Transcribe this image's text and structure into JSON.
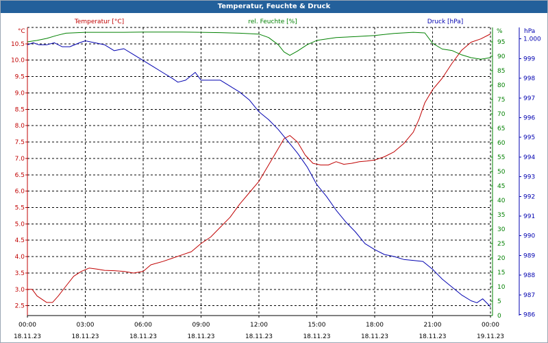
{
  "window": {
    "title": "Temperatur, Feuchte & Druck"
  },
  "colors": {
    "temperature": "#c00000",
    "humidity": "#008000",
    "pressure": "#0000b0",
    "titlebar": "#23609b"
  },
  "chart_data": {
    "type": "line",
    "x_ticks": [
      {
        "hours": 0,
        "time": "00:00",
        "date": "18.11.23"
      },
      {
        "hours": 3,
        "time": "03:00",
        "date": "18.11.23"
      },
      {
        "hours": 6,
        "time": "06:00",
        "date": "18.11.23"
      },
      {
        "hours": 9,
        "time": "09:00",
        "date": "18.11.23"
      },
      {
        "hours": 12,
        "time": "12:00",
        "date": "18.11.23"
      },
      {
        "hours": 15,
        "time": "15:00",
        "date": "18.11.23"
      },
      {
        "hours": 18,
        "time": "18:00",
        "date": "18.11.23"
      },
      {
        "hours": 21,
        "time": "21:00",
        "date": "18.11.23"
      },
      {
        "hours": 24,
        "time": "00:00",
        "date": "19.11.23"
      }
    ],
    "xlim": [
      0,
      24
    ],
    "grid": true,
    "axes": {
      "temperature": {
        "title": "Temperatur [°C]",
        "unit": "°C",
        "min": 2.2,
        "max": 11.0,
        "ticks": [
          {
            "v": 2.5,
            "label": "2.5"
          },
          {
            "v": 3.0,
            "label": "3.0"
          },
          {
            "v": 3.5,
            "label": "3.5"
          },
          {
            "v": 4.0,
            "label": "4.0"
          },
          {
            "v": 4.5,
            "label": "4.5"
          },
          {
            "v": 5.0,
            "label": "5.0"
          },
          {
            "v": 5.5,
            "label": "5.5"
          },
          {
            "v": 6.0,
            "label": "6.0"
          },
          {
            "v": 6.5,
            "label": "6.5"
          },
          {
            "v": 7.0,
            "label": "7.0"
          },
          {
            "v": 7.5,
            "label": "7.5"
          },
          {
            "v": 8.0,
            "label": "8.0"
          },
          {
            "v": 8.5,
            "label": "8.5"
          },
          {
            "v": 9.0,
            "label": "9.0"
          },
          {
            "v": 9.5,
            "label": "9.5"
          },
          {
            "v": 10.0,
            "label": "10.0"
          },
          {
            "v": 10.5,
            "label": "10.5"
          }
        ]
      },
      "humidity": {
        "title": "rel. Feuchte [%]",
        "unit": "%",
        "min": 0,
        "max": 100,
        "ticks": [
          {
            "v": 0,
            "label": "0"
          },
          {
            "v": 5,
            "label": "5"
          },
          {
            "v": 10,
            "label": "10"
          },
          {
            "v": 15,
            "label": "15"
          },
          {
            "v": 20,
            "label": "20"
          },
          {
            "v": 25,
            "label": "25"
          },
          {
            "v": 30,
            "label": "30"
          },
          {
            "v": 35,
            "label": "35"
          },
          {
            "v": 40,
            "label": "40"
          },
          {
            "v": 45,
            "label": "45"
          },
          {
            "v": 50,
            "label": "50"
          },
          {
            "v": 55,
            "label": "55"
          },
          {
            "v": 60,
            "label": "60"
          },
          {
            "v": 65,
            "label": "65"
          },
          {
            "v": 70,
            "label": "70"
          },
          {
            "v": 75,
            "label": "75"
          },
          {
            "v": 80,
            "label": "80"
          },
          {
            "v": 85,
            "label": "85"
          },
          {
            "v": 90,
            "label": "90"
          },
          {
            "v": 95,
            "label": "95"
          }
        ]
      },
      "pressure": {
        "title": "Druck [hPa]",
        "unit": "hPa",
        "min": 985.95,
        "max": 1000.58,
        "ticks": [
          {
            "v": 986,
            "label": "986"
          },
          {
            "v": 987,
            "label": "987"
          },
          {
            "v": 988,
            "label": "988"
          },
          {
            "v": 989,
            "label": "989"
          },
          {
            "v": 990,
            "label": "990"
          },
          {
            "v": 991,
            "label": "991"
          },
          {
            "v": 992,
            "label": "992"
          },
          {
            "v": 993,
            "label": "993"
          },
          {
            "v": 994,
            "label": "994"
          },
          {
            "v": 995,
            "label": "995"
          },
          {
            "v": 996,
            "label": "996"
          },
          {
            "v": 997,
            "label": "997"
          },
          {
            "v": 998,
            "label": "998"
          },
          {
            "v": 999,
            "label": "999"
          },
          {
            "v": 1000,
            "label": "1.000"
          }
        ]
      }
    },
    "series": [
      {
        "name": "Temperatur",
        "axis": "temperature",
        "color": "#c00000",
        "points": [
          [
            0,
            3.0
          ],
          [
            0.25,
            3.0
          ],
          [
            0.5,
            2.8
          ],
          [
            1.0,
            2.6
          ],
          [
            1.3,
            2.6
          ],
          [
            1.6,
            2.8
          ],
          [
            2.0,
            3.1
          ],
          [
            2.4,
            3.4
          ],
          [
            2.8,
            3.55
          ],
          [
            3.2,
            3.65
          ],
          [
            3.6,
            3.62
          ],
          [
            4.0,
            3.58
          ],
          [
            4.5,
            3.57
          ],
          [
            5.0,
            3.55
          ],
          [
            5.5,
            3.5
          ],
          [
            6.0,
            3.55
          ],
          [
            6.4,
            3.75
          ],
          [
            7.0,
            3.85
          ],
          [
            7.5,
            3.95
          ],
          [
            8.0,
            4.05
          ],
          [
            8.5,
            4.15
          ],
          [
            9.0,
            4.4
          ],
          [
            9.5,
            4.6
          ],
          [
            10.0,
            4.9
          ],
          [
            10.5,
            5.2
          ],
          [
            11.0,
            5.6
          ],
          [
            11.5,
            5.95
          ],
          [
            12.0,
            6.3
          ],
          [
            12.5,
            6.8
          ],
          [
            13.0,
            7.3
          ],
          [
            13.3,
            7.6
          ],
          [
            13.6,
            7.7
          ],
          [
            14.0,
            7.5
          ],
          [
            14.4,
            7.1
          ],
          [
            14.8,
            6.85
          ],
          [
            15.2,
            6.8
          ],
          [
            15.6,
            6.8
          ],
          [
            16.0,
            6.9
          ],
          [
            16.4,
            6.82
          ],
          [
            16.8,
            6.85
          ],
          [
            17.2,
            6.9
          ],
          [
            17.6,
            6.92
          ],
          [
            18.0,
            6.95
          ],
          [
            18.5,
            7.05
          ],
          [
            19.0,
            7.2
          ],
          [
            19.5,
            7.45
          ],
          [
            20.0,
            7.8
          ],
          [
            20.3,
            8.2
          ],
          [
            20.6,
            8.7
          ],
          [
            21.0,
            9.1
          ],
          [
            21.5,
            9.45
          ],
          [
            22.0,
            9.9
          ],
          [
            22.5,
            10.3
          ],
          [
            23.0,
            10.55
          ],
          [
            23.5,
            10.65
          ],
          [
            24.0,
            10.8
          ]
        ]
      },
      {
        "name": "rel. Feuchte",
        "axis": "humidity",
        "color": "#008000",
        "points": [
          [
            0,
            95.0
          ],
          [
            0.5,
            95.5
          ],
          [
            1.0,
            96.2
          ],
          [
            1.5,
            97.2
          ],
          [
            2.0,
            98.0
          ],
          [
            3.0,
            98.3
          ],
          [
            4.0,
            98.3
          ],
          [
            5.0,
            98.3
          ],
          [
            6.0,
            98.4
          ],
          [
            7.0,
            98.4
          ],
          [
            8.0,
            98.4
          ],
          [
            9.0,
            98.3
          ],
          [
            10.0,
            98.2
          ],
          [
            11.0,
            98.0
          ],
          [
            12.0,
            97.7
          ],
          [
            12.5,
            96.5
          ],
          [
            13.0,
            94.0
          ],
          [
            13.3,
            91.5
          ],
          [
            13.6,
            90.3
          ],
          [
            14.0,
            91.8
          ],
          [
            14.5,
            94.0
          ],
          [
            15.0,
            95.5
          ],
          [
            16.0,
            96.5
          ],
          [
            17.0,
            96.8
          ],
          [
            18.0,
            97.2
          ],
          [
            19.0,
            97.9
          ],
          [
            20.0,
            98.3
          ],
          [
            20.6,
            98.1
          ],
          [
            21.0,
            94.5
          ],
          [
            21.5,
            92.5
          ],
          [
            22.0,
            92.0
          ],
          [
            22.5,
            90.5
          ],
          [
            23.0,
            89.5
          ],
          [
            23.5,
            89.0
          ],
          [
            24.0,
            89.5
          ]
        ]
      },
      {
        "name": "Druck",
        "axis": "pressure",
        "color": "#0000b0",
        "points": [
          [
            0,
            999.7
          ],
          [
            0.3,
            999.8
          ],
          [
            0.6,
            999.7
          ],
          [
            1.0,
            999.7
          ],
          [
            1.4,
            999.8
          ],
          [
            1.8,
            999.6
          ],
          [
            2.2,
            999.6
          ],
          [
            2.7,
            999.8
          ],
          [
            3.0,
            999.9
          ],
          [
            3.5,
            999.8
          ],
          [
            4.0,
            999.7
          ],
          [
            4.5,
            999.4
          ],
          [
            5.0,
            999.5
          ],
          [
            5.5,
            999.2
          ],
          [
            6.0,
            998.9
          ],
          [
            6.5,
            998.6
          ],
          [
            7.0,
            998.3
          ],
          [
            7.5,
            998.0
          ],
          [
            7.8,
            997.8
          ],
          [
            8.2,
            997.9
          ],
          [
            8.7,
            998.3
          ],
          [
            9.0,
            997.9
          ],
          [
            9.5,
            997.9
          ],
          [
            10.0,
            997.9
          ],
          [
            10.5,
            997.6
          ],
          [
            11.0,
            997.3
          ],
          [
            11.5,
            996.9
          ],
          [
            12.0,
            996.3
          ],
          [
            12.5,
            995.9
          ],
          [
            13.0,
            995.4
          ],
          [
            13.5,
            994.8
          ],
          [
            14.0,
            994.2
          ],
          [
            14.5,
            993.5
          ],
          [
            15.0,
            992.6
          ],
          [
            15.5,
            992.0
          ],
          [
            16.0,
            991.3
          ],
          [
            16.5,
            990.7
          ],
          [
            17.0,
            990.2
          ],
          [
            17.5,
            989.6
          ],
          [
            18.0,
            989.3
          ],
          [
            18.5,
            989.05
          ],
          [
            19.0,
            988.95
          ],
          [
            19.5,
            988.8
          ],
          [
            20.0,
            988.75
          ],
          [
            20.5,
            988.7
          ],
          [
            21.0,
            988.3
          ],
          [
            21.5,
            987.8
          ],
          [
            22.0,
            987.4
          ],
          [
            22.5,
            987.0
          ],
          [
            23.0,
            986.7
          ],
          [
            23.3,
            986.6
          ],
          [
            23.6,
            986.8
          ],
          [
            24.0,
            986.4
          ]
        ]
      }
    ]
  }
}
